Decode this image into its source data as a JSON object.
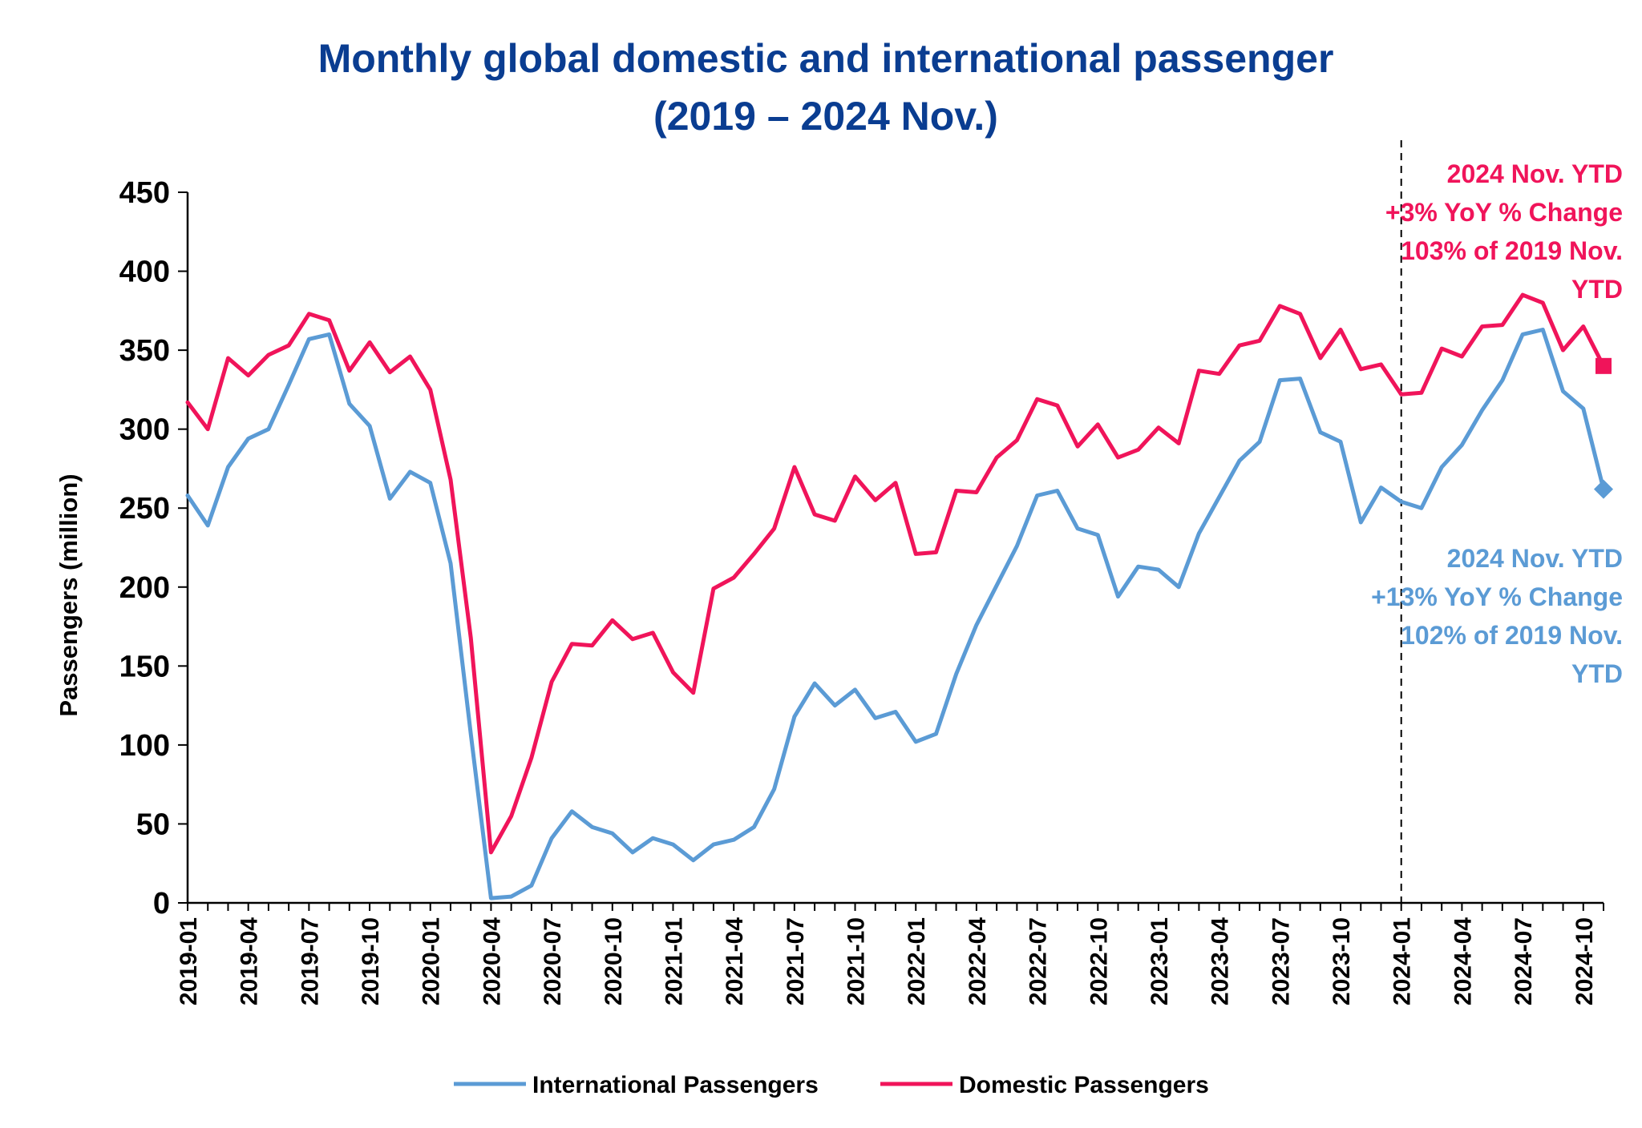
{
  "chart_data": {
    "type": "line",
    "title": [
      "Monthly global domestic and international passenger",
      "(2019 – 2024 Nov.)"
    ],
    "ylabel": "Passengers (million)",
    "ylim": [
      0,
      450
    ],
    "yticks": [
      0,
      50,
      100,
      150,
      200,
      250,
      300,
      350,
      400,
      450
    ],
    "x": [
      "2019-01",
      "2019-02",
      "2019-03",
      "2019-04",
      "2019-05",
      "2019-06",
      "2019-07",
      "2019-08",
      "2019-09",
      "2019-10",
      "2019-11",
      "2019-12",
      "2020-01",
      "2020-02",
      "2020-03",
      "2020-04",
      "2020-05",
      "2020-06",
      "2020-07",
      "2020-08",
      "2020-09",
      "2020-10",
      "2020-11",
      "2020-12",
      "2021-01",
      "2021-02",
      "2021-03",
      "2021-04",
      "2021-05",
      "2021-06",
      "2021-07",
      "2021-08",
      "2021-09",
      "2021-10",
      "2021-11",
      "2021-12",
      "2022-01",
      "2022-02",
      "2022-03",
      "2022-04",
      "2022-05",
      "2022-06",
      "2022-07",
      "2022-08",
      "2022-09",
      "2022-10",
      "2022-11",
      "2022-12",
      "2023-01",
      "2023-02",
      "2023-03",
      "2023-04",
      "2023-05",
      "2023-06",
      "2023-07",
      "2023-08",
      "2023-09",
      "2023-10",
      "2023-11",
      "2023-12",
      "2024-01",
      "2024-02",
      "2024-03",
      "2024-04",
      "2024-05",
      "2024-06",
      "2024-07",
      "2024-08",
      "2024-09",
      "2024-10",
      "2024-11"
    ],
    "xtick_labels": [
      "2019-01",
      "2019-04",
      "2019-07",
      "2019-10",
      "2020-01",
      "2020-04",
      "2020-07",
      "2020-10",
      "2021-01",
      "2021-04",
      "2021-07",
      "2021-10",
      "2022-01",
      "2022-04",
      "2022-07",
      "2022-10",
      "2023-01",
      "2023-04",
      "2023-07",
      "2023-10",
      "2024-01",
      "2024-04",
      "2024-07",
      "2024-10"
    ],
    "series": [
      {
        "name": "International Passengers",
        "color": "#5b9bd5",
        "marker": "diamond",
        "values": [
          258,
          239,
          276,
          294,
          300,
          328,
          357,
          360,
          316,
          302,
          256,
          273,
          266,
          215,
          107,
          3,
          4,
          11,
          41,
          58,
          48,
          44,
          32,
          41,
          37,
          27,
          37,
          40,
          48,
          72,
          118,
          139,
          125,
          135,
          117,
          121,
          102,
          107,
          145,
          176,
          201,
          226,
          258,
          261,
          237,
          233,
          194,
          213,
          211,
          200,
          234,
          257,
          280,
          292,
          331,
          332,
          298,
          292,
          241,
          263,
          254,
          250,
          276,
          290,
          312,
          331,
          360,
          363,
          324,
          313,
          262
        ]
      },
      {
        "name": "Domestic Passengers",
        "color": "#f0145a",
        "marker": "square",
        "values": [
          317,
          300,
          345,
          334,
          347,
          353,
          373,
          369,
          337,
          355,
          336,
          346,
          325,
          268,
          168,
          32,
          55,
          92,
          140,
          164,
          163,
          179,
          167,
          171,
          146,
          133,
          199,
          206,
          221,
          237,
          276,
          246,
          242,
          270,
          255,
          266,
          221,
          222,
          261,
          260,
          282,
          293,
          319,
          315,
          289,
          303,
          282,
          287,
          301,
          291,
          337,
          335,
          353,
          356,
          378,
          373,
          345,
          363,
          338,
          341,
          322,
          323,
          351,
          346,
          365,
          366,
          385,
          380,
          350,
          365,
          340
        ]
      }
    ],
    "divider_at": "2024-01",
    "annotations": [
      {
        "series": "Domestic Passengers",
        "color": "#f0145a",
        "lines": [
          "2024 Nov. YTD",
          "+3% YoY % Change",
          "103% of 2019 Nov.",
          "YTD"
        ]
      },
      {
        "series": "International Passengers",
        "color": "#5b9bd5",
        "lines": [
          "2024 Nov. YTD",
          "+13% YoY % Change",
          "102% of 2019 Nov.",
          "YTD"
        ]
      }
    ],
    "grid": false,
    "legend_position": "bottom-center"
  }
}
